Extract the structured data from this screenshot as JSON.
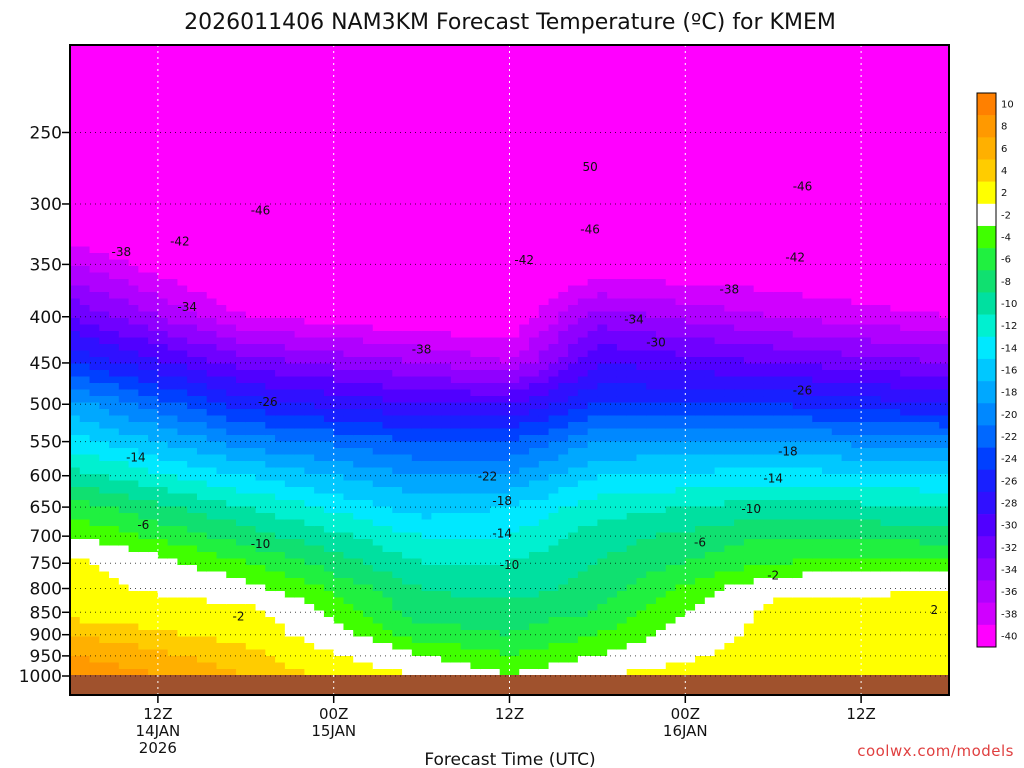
{
  "chart_data": {
    "type": "heatmap",
    "title": "2026011406 NAM3KM Forecast Temperature (ºC) for KMEM",
    "xlabel": "Forecast Time (UTC)",
    "ylabel": "",
    "source": "coolwx.com/models",
    "x_ticks": [
      {
        "t": 6,
        "lines": [
          "12Z",
          "14JAN",
          "2026"
        ]
      },
      {
        "t": 18,
        "lines": [
          "00Z",
          "15JAN"
        ]
      },
      {
        "t": 30,
        "lines": [
          "12Z"
        ]
      },
      {
        "t": 42,
        "lines": [
          "00Z",
          "16JAN"
        ]
      },
      {
        "t": 54,
        "lines": [
          "12Z"
        ]
      }
    ],
    "x_range_hours": [
      0,
      60
    ],
    "y_axis": {
      "unit": "hPa",
      "range": [
        1000,
        200
      ],
      "log_scale": true,
      "ticks": [
        250,
        300,
        350,
        400,
        450,
        500,
        550,
        600,
        650,
        700,
        750,
        800,
        850,
        900,
        950,
        1000
      ]
    },
    "colorbar": {
      "labels": [
        "10",
        "8",
        "6",
        "4",
        "2",
        "-2",
        "-4",
        "-6",
        "-8",
        "-10",
        "-12",
        "-14",
        "-16",
        "-18",
        "-20",
        "-22",
        "-24",
        "-26",
        "-28",
        "-30",
        "-32",
        "-34",
        "-36",
        "-38",
        "-40"
      ],
      "colors": [
        "#ff8000",
        "#ff9900",
        "#ffb000",
        "#ffcc00",
        "#ffff00",
        "#ffffff",
        "#40ff00",
        "#20f040",
        "#10e070",
        "#00e0a0",
        "#00f0d0",
        "#00e8ff",
        "#00c8ff",
        "#00a8ff",
        "#0088ff",
        "#0068ff",
        "#0040ff",
        "#1820ff",
        "#3010ff",
        "#5000ff",
        "#7000ff",
        "#9000ff",
        "#b000ff",
        "#d000ff",
        "#ff00ff"
      ]
    },
    "temperature_profiles": [
      {
        "t": 0,
        "levels": [
          {
            "p": 1000,
            "T": 10
          },
          {
            "p": 950,
            "T": 8
          },
          {
            "p": 900,
            "T": 6
          },
          {
            "p": 850,
            "T": 3
          },
          {
            "p": 800,
            "T": 2
          },
          {
            "p": 750,
            "T": 2
          },
          {
            "p": 700,
            "T": -2
          },
          {
            "p": 650,
            "T": -5
          },
          {
            "p": 600,
            "T": -9
          },
          {
            "p": 550,
            "T": -13
          },
          {
            "p": 500,
            "T": -17
          },
          {
            "p": 450,
            "T": -24
          },
          {
            "p": 400,
            "T": -30
          },
          {
            "p": 350,
            "T": -36
          },
          {
            "p": 300,
            "T": -42
          },
          {
            "p": 250,
            "T": -48
          },
          {
            "p": 200,
            "T": -50
          }
        ]
      },
      {
        "t": 12,
        "levels": [
          {
            "p": 1000,
            "T": 6
          },
          {
            "p": 950,
            "T": 5
          },
          {
            "p": 900,
            "T": 3
          },
          {
            "p": 850,
            "T": 2
          },
          {
            "p": 800,
            "T": -1
          },
          {
            "p": 750,
            "T": -4
          },
          {
            "p": 700,
            "T": -7
          },
          {
            "p": 650,
            "T": -10
          },
          {
            "p": 600,
            "T": -14
          },
          {
            "p": 550,
            "T": -19
          },
          {
            "p": 500,
            "T": -25
          },
          {
            "p": 450,
            "T": -31
          },
          {
            "p": 400,
            "T": -38
          },
          {
            "p": 350,
            "T": -42
          },
          {
            "p": 300,
            "T": -46
          },
          {
            "p": 250,
            "T": -48
          },
          {
            "p": 200,
            "T": -50
          }
        ]
      },
      {
        "t": 24,
        "levels": [
          {
            "p": 1000,
            "T": 1
          },
          {
            "p": 950,
            "T": -2
          },
          {
            "p": 900,
            "T": -5
          },
          {
            "p": 850,
            "T": -7
          },
          {
            "p": 800,
            "T": -8
          },
          {
            "p": 750,
            "T": -10
          },
          {
            "p": 700,
            "T": -12
          },
          {
            "p": 650,
            "T": -15
          },
          {
            "p": 600,
            "T": -18
          },
          {
            "p": 550,
            "T": -22
          },
          {
            "p": 500,
            "T": -28
          },
          {
            "p": 450,
            "T": -34
          },
          {
            "p": 400,
            "T": -40
          },
          {
            "p": 350,
            "T": -44
          },
          {
            "p": 300,
            "T": -47
          },
          {
            "p": 250,
            "T": -49
          },
          {
            "p": 200,
            "T": -51
          }
        ]
      },
      {
        "t": 30,
        "levels": [
          {
            "p": 1000,
            "T": -2
          },
          {
            "p": 950,
            "T": -4
          },
          {
            "p": 900,
            "T": -6
          },
          {
            "p": 850,
            "T": -7
          },
          {
            "p": 800,
            "T": -9
          },
          {
            "p": 750,
            "T": -10
          },
          {
            "p": 700,
            "T": -12
          },
          {
            "p": 650,
            "T": -14
          },
          {
            "p": 600,
            "T": -18
          },
          {
            "p": 550,
            "T": -22
          },
          {
            "p": 500,
            "T": -28
          },
          {
            "p": 450,
            "T": -36
          },
          {
            "p": 400,
            "T": -40
          },
          {
            "p": 350,
            "T": -42
          },
          {
            "p": 300,
            "T": -46
          },
          {
            "p": 250,
            "T": -50
          },
          {
            "p": 200,
            "T": -51
          }
        ]
      },
      {
        "t": 36,
        "levels": [
          {
            "p": 1000,
            "T": 1
          },
          {
            "p": 950,
            "T": -2
          },
          {
            "p": 900,
            "T": -4
          },
          {
            "p": 850,
            "T": -6
          },
          {
            "p": 800,
            "T": -7
          },
          {
            "p": 750,
            "T": -8
          },
          {
            "p": 700,
            "T": -9
          },
          {
            "p": 650,
            "T": -11
          },
          {
            "p": 600,
            "T": -14
          },
          {
            "p": 550,
            "T": -18
          },
          {
            "p": 500,
            "T": -24
          },
          {
            "p": 450,
            "T": -28
          },
          {
            "p": 400,
            "T": -33
          },
          {
            "p": 350,
            "T": -40
          },
          {
            "p": 300,
            "T": -46
          },
          {
            "p": 250,
            "T": -50
          },
          {
            "p": 200,
            "T": -50
          }
        ]
      },
      {
        "t": 48,
        "levels": [
          {
            "p": 1000,
            "T": 4
          },
          {
            "p": 950,
            "T": 3
          },
          {
            "p": 900,
            "T": 2
          },
          {
            "p": 850,
            "T": 2
          },
          {
            "p": 800,
            "T": 0
          },
          {
            "p": 750,
            "T": -4
          },
          {
            "p": 700,
            "T": -6
          },
          {
            "p": 650,
            "T": -9
          },
          {
            "p": 600,
            "T": -13
          },
          {
            "p": 550,
            "T": -18
          },
          {
            "p": 500,
            "T": -24
          },
          {
            "p": 450,
            "T": -30
          },
          {
            "p": 400,
            "T": -36
          },
          {
            "p": 350,
            "T": -40
          },
          {
            "p": 300,
            "T": -44
          },
          {
            "p": 250,
            "T": -47
          },
          {
            "p": 200,
            "T": -48
          }
        ]
      },
      {
        "t": 60,
        "levels": [
          {
            "p": 1000,
            "T": 3
          },
          {
            "p": 950,
            "T": 3
          },
          {
            "p": 900,
            "T": 2
          },
          {
            "p": 850,
            "T": 2
          },
          {
            "p": 800,
            "T": 1
          },
          {
            "p": 750,
            "T": -3
          },
          {
            "p": 700,
            "T": -7
          },
          {
            "p": 650,
            "T": -10
          },
          {
            "p": 600,
            "T": -14
          },
          {
            "p": 550,
            "T": -19
          },
          {
            "p": 500,
            "T": -26
          },
          {
            "p": 450,
            "T": -32
          },
          {
            "p": 400,
            "T": -38
          },
          {
            "p": 350,
            "T": -42
          },
          {
            "p": 300,
            "T": -45
          },
          {
            "p": 250,
            "T": -48
          },
          {
            "p": 200,
            "T": -48
          }
        ]
      }
    ],
    "contour_labels": [
      {
        "text": "-46",
        "t": 13,
        "p": 305
      },
      {
        "text": "-42",
        "t": 7.5,
        "p": 330
      },
      {
        "text": "-38",
        "t": 3.5,
        "p": 339
      },
      {
        "text": "-34",
        "t": 8,
        "p": 390
      },
      {
        "text": "-38",
        "t": 24,
        "p": 435
      },
      {
        "text": "-26",
        "t": 13.5,
        "p": 497
      },
      {
        "text": "-14",
        "t": 4.5,
        "p": 573
      },
      {
        "text": "-6",
        "t": 5,
        "p": 680
      },
      {
        "text": "-10",
        "t": 13,
        "p": 714
      },
      {
        "text": "-2",
        "t": 11.5,
        "p": 859
      },
      {
        "text": "50",
        "t": 35.5,
        "p": 273
      },
      {
        "text": "-46",
        "t": 35.5,
        "p": 320
      },
      {
        "text": "-42",
        "t": 31,
        "p": 346
      },
      {
        "text": "-34",
        "t": 38.5,
        "p": 403
      },
      {
        "text": "-30",
        "t": 40,
        "p": 427
      },
      {
        "text": "-22",
        "t": 28.5,
        "p": 601
      },
      {
        "text": "-18",
        "t": 29.5,
        "p": 640
      },
      {
        "text": "-14",
        "t": 29.5,
        "p": 695
      },
      {
        "text": "-10",
        "t": 30,
        "p": 753
      },
      {
        "text": "-6",
        "t": 43,
        "p": 711
      },
      {
        "text": "-46",
        "t": 50,
        "p": 287
      },
      {
        "text": "-42",
        "t": 49.5,
        "p": 344
      },
      {
        "text": "-38",
        "t": 45,
        "p": 373
      },
      {
        "text": "-26",
        "t": 50,
        "p": 483
      },
      {
        "text": "-18",
        "t": 49,
        "p": 564
      },
      {
        "text": "-14",
        "t": 48,
        "p": 604
      },
      {
        "text": "-10",
        "t": 46.5,
        "p": 653
      },
      {
        "text": "-2",
        "t": 48,
        "p": 774
      },
      {
        "text": "2",
        "t": 59,
        "p": 845
      }
    ]
  }
}
